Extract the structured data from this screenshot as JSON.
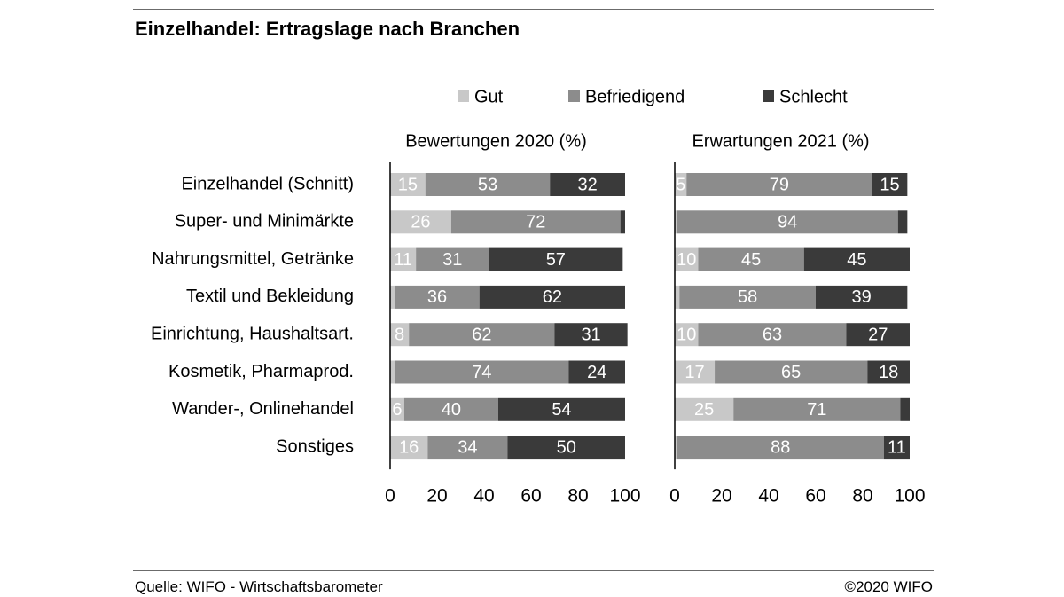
{
  "header": {
    "title": "Einzelhandel: Ertragslage nach Branchen"
  },
  "footer": {
    "source": "Quelle: WIFO - Wirtschaftsbarometer",
    "copyright": "©2020 WIFO"
  },
  "colors": {
    "Gut": "#c8c8c8",
    "Befriedigend": "#8c8c8c",
    "Schlecht": "#3a3a3a",
    "axis": "#000000"
  },
  "chart_data": {
    "type": "bar",
    "orientation": "horizontal",
    "stacked": true,
    "legend": {
      "position": "top",
      "entries": [
        "Gut",
        "Befriedigend",
        "Schlecht"
      ]
    },
    "categories": [
      "Einzelhandel (Schnitt)",
      "Super- und Minimärkte",
      "Nahrungsmittel, Getränke",
      "Textil und Bekleidung",
      "Einrichtung, Haushaltsart.",
      "Kosmetik, Pharmaprod.",
      "Wander-, Onlinehandel",
      "Sonstiges"
    ],
    "xlim": [
      0,
      100
    ],
    "xticks": [
      0,
      20,
      40,
      60,
      80,
      100
    ],
    "panels": [
      {
        "title": "Bewertungen 2020 (%)",
        "series": [
          {
            "name": "Gut",
            "values": [
              15,
              26,
              11,
              2,
              8,
              2,
              6,
              16
            ]
          },
          {
            "name": "Befriedigend",
            "values": [
              53,
              72,
              31,
              36,
              62,
              74,
              40,
              34
            ]
          },
          {
            "name": "Schlecht",
            "values": [
              32,
              2,
              57,
              62,
              31,
              24,
              54,
              50
            ]
          }
        ]
      },
      {
        "title": "Erwartungen 2021 (%)",
        "series": [
          {
            "name": "Gut",
            "values": [
              5,
              1,
              10,
              2,
              10,
              17,
              25,
              1
            ]
          },
          {
            "name": "Befriedigend",
            "values": [
              79,
              94,
              45,
              58,
              63,
              65,
              71,
              88
            ]
          },
          {
            "name": "Schlecht",
            "values": [
              15,
              4,
              45,
              39,
              27,
              18,
              4,
              11
            ]
          }
        ]
      }
    ]
  }
}
